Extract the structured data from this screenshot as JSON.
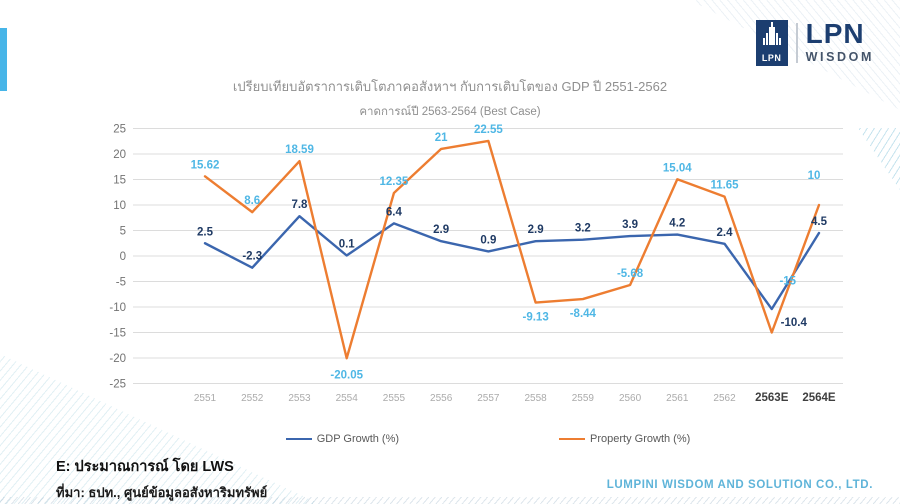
{
  "logo": {
    "box_text": "LPN",
    "brand": "LPN",
    "brand_sub": "WISDOM",
    "navy": "#1C3E70"
  },
  "chart_data": {
    "type": "line",
    "title": "เปรียบเทียบอัตราการเติบโตภาคอสังหาฯ กับการเติบโตของ GDP ปี 2551-2562",
    "subtitle": "คาดการณ์ปี 2563-2564 (Best Case)",
    "categories": [
      "2551",
      "2552",
      "2553",
      "2554",
      "2555",
      "2556",
      "2557",
      "2558",
      "2559",
      "2560",
      "2561",
      "2562",
      "2563E",
      "2564E"
    ],
    "series": [
      {
        "name": "GDP Growth (%)",
        "color": "#3B66AE",
        "label_color": "#1F3A64",
        "values": [
          2.5,
          -2.3,
          7.8,
          0.1,
          6.4,
          2.9,
          0.9,
          2.9,
          3.2,
          3.9,
          4.2,
          2.4,
          -10.4,
          4.5
        ],
        "labels": [
          "2.5",
          "-2.3",
          "7.8",
          "0.1",
          "6.4",
          "2.9",
          "0.9",
          "2.9",
          "3.2",
          "3.9",
          "4.2",
          "2.4",
          "-10.4",
          "4.5"
        ]
      },
      {
        "name": "Property Growth (%)",
        "color": "#ED7D31",
        "label_color": "#4FB7E5",
        "values": [
          15.62,
          8.6,
          18.59,
          -20.05,
          12.35,
          21,
          22.55,
          -9.13,
          -8.44,
          -5.68,
          15.04,
          11.65,
          -15,
          10
        ],
        "labels": [
          "15.62",
          "8.6",
          "18.59",
          "-20.05",
          "12.35",
          "21",
          "22.55",
          "-9.13",
          "-8.44",
          "-5.68",
          "15.04",
          "11.65",
          "-15",
          "10"
        ]
      }
    ],
    "y_ticks": [
      25,
      20,
      15,
      10,
      5,
      0,
      -5,
      -10,
      -15,
      -20,
      -25
    ],
    "ylim": [
      -25,
      25
    ],
    "grid": true,
    "legend_position": "bottom"
  },
  "footer": {
    "note": "E: ประมาณการณ์ โดย LWS",
    "source": "ที่มา: ธปท., ศูนย์ข้อมูลอสังหาริมทรัพย์",
    "company": "LUMPINI WISDOM AND SOLUTION CO., LTD."
  }
}
